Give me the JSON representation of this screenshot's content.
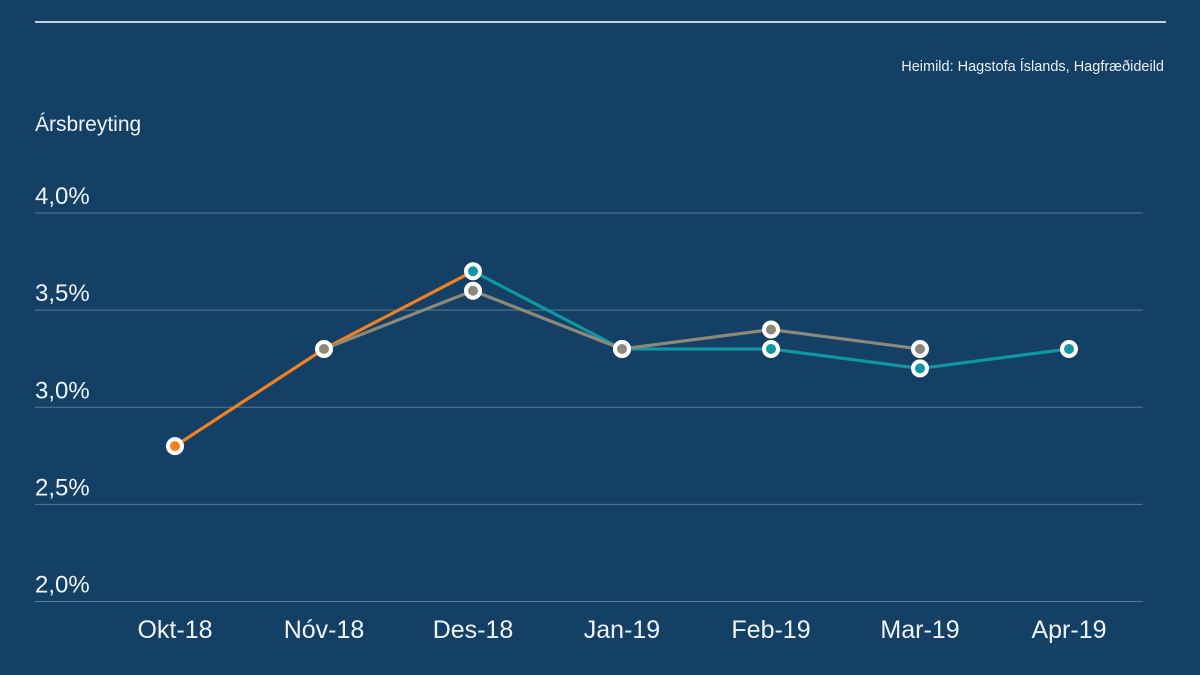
{
  "page": {
    "background_color": "#134064",
    "top_rule_color": "#C6CEDA"
  },
  "header": {
    "source_note": "Heimild: Hagstofa Íslands, Hagfræðideild"
  },
  "chart_data": {
    "type": "line",
    "title": "Ársbreyting",
    "categories": [
      "Okt-18",
      "Nóv-18",
      "Des-18",
      "Jan-19",
      "Feb-19",
      "Mar-19",
      "Apr-19"
    ],
    "series": [
      {
        "name": "orange",
        "color": "#EF8122",
        "values": [
          2.8,
          3.3,
          3.7,
          null,
          null,
          null,
          null
        ]
      },
      {
        "name": "teal",
        "color": "#1095A5",
        "values": [
          null,
          null,
          3.7,
          3.3,
          3.3,
          3.2,
          3.3
        ]
      },
      {
        "name": "gray",
        "color": "#8C887A",
        "values": [
          null,
          3.3,
          3.6,
          3.3,
          3.4,
          3.3,
          null
        ]
      }
    ],
    "markers": [
      {
        "series": "teal",
        "category": "Des-18",
        "value": 3.7
      },
      {
        "series": "teal",
        "category": "Jan-19",
        "value": 3.3
      },
      {
        "series": "teal",
        "category": "Feb-19",
        "value": 3.3
      },
      {
        "series": "teal",
        "category": "Mar-19",
        "value": 3.2
      },
      {
        "series": "teal",
        "category": "Apr-19",
        "value": 3.3
      },
      {
        "series": "gray",
        "category": "Nóv-18",
        "value": 3.3
      },
      {
        "series": "gray",
        "category": "Des-18",
        "value": 3.6
      },
      {
        "series": "gray",
        "category": "Jan-19",
        "value": 3.3
      },
      {
        "series": "gray",
        "category": "Feb-19",
        "value": 3.4
      },
      {
        "series": "gray",
        "category": "Mar-19",
        "value": 3.3
      },
      {
        "series": "orange",
        "category": "Okt-18",
        "value": 2.8
      }
    ],
    "y_axis": {
      "ylim": [
        2.0,
        4.0
      ],
      "ticks": [
        {
          "value": 4.0,
          "label": "4,0%"
        },
        {
          "value": 3.5,
          "label": "3,5%"
        },
        {
          "value": 3.0,
          "label": "3,0%"
        },
        {
          "value": 2.5,
          "label": "2,5%"
        },
        {
          "value": 2.0,
          "label": "2,0%"
        }
      ]
    },
    "grid": true,
    "legend": "none"
  }
}
